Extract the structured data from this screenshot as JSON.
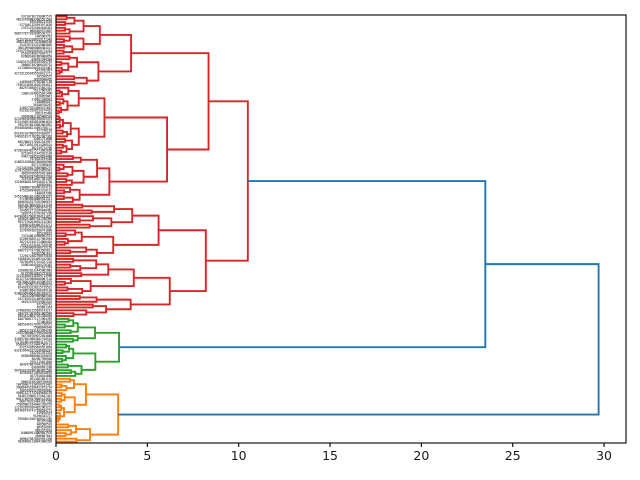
{
  "figure": {
    "background": "#ffffff",
    "description": "Hierarchical clustering dendrogram, horizontal orientation with leaves on the left axis and merge distance on the x-axis"
  },
  "chart_data": {
    "type": "dendrogram",
    "title": "",
    "xlabel": "",
    "ylabel": "",
    "orientation": "right (leaves on left)",
    "grid": false,
    "n_leaves": 150,
    "xlim": [
      0,
      31.2
    ],
    "xticks": [
      0,
      5,
      10,
      15,
      20,
      25,
      30
    ],
    "axis_color": "#000000",
    "tick_label_color": "#1a1a1a",
    "above_threshold_color": "#1f77b4",
    "leaf_labels_illegible": true,
    "clusters": [
      {
        "name": "cluster-red",
        "color": "#d62728",
        "n_leaves": 106,
        "root_height": 10.5
      },
      {
        "name": "cluster-green",
        "color": "#2ca02c",
        "n_leaves": 21,
        "root_height": 3.45
      },
      {
        "name": "cluster-orange",
        "color": "#ff7f0e",
        "n_leaves": 23,
        "root_height": 3.4
      }
    ],
    "linkage_tree": {
      "height": 29.7,
      "color": "#1f77b4",
      "children": [
        {
          "height": 23.5,
          "color": "#1f77b4",
          "children": [
            {
              "height": 10.5,
              "color": "#d62728",
              "children": [
                {
                  "height": 8.35,
                  "n_leaves": 66,
                  "color": "#d62728"
                },
                {
                  "height": 8.2,
                  "n_leaves": 40,
                  "color": "#d62728"
                }
              ]
            },
            {
              "height": 3.45,
              "n_leaves": 21,
              "color": "#2ca02c"
            }
          ]
        },
        {
          "height": 3.4,
          "n_leaves": 23,
          "color": "#ff7f0e"
        }
      ]
    }
  }
}
